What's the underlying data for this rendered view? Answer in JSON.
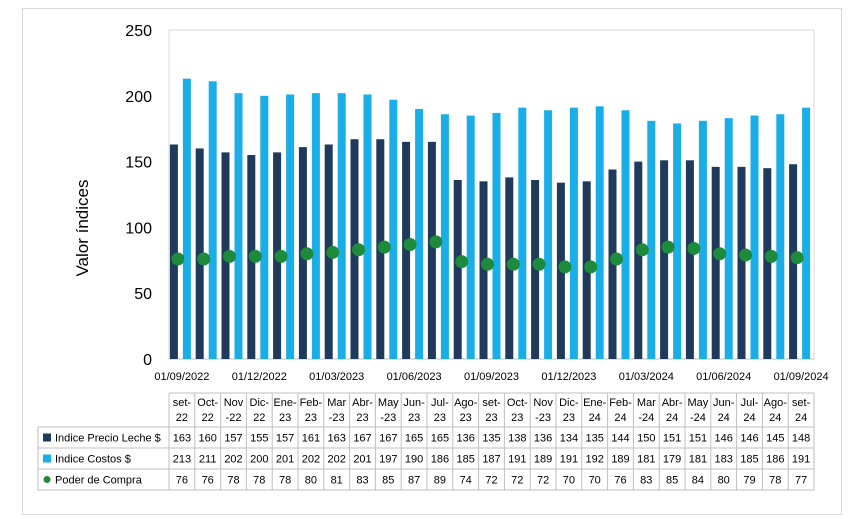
{
  "chart_data": {
    "type": "bar",
    "ylabel": "Valor índices",
    "ylim": [
      0,
      250
    ],
    "yticks": [
      0,
      50,
      100,
      150,
      200,
      250
    ],
    "date_axis_labels": [
      "01/09/2022",
      "01/12/2022",
      "01/03/2023",
      "01/06/2023",
      "01/09/2023",
      "01/12/2023",
      "01/03/2024",
      "01/06/2024",
      "01/09/2024"
    ],
    "categories": [
      [
        "set-",
        "22"
      ],
      [
        "Oct-",
        "22"
      ],
      [
        "Nov",
        "-22"
      ],
      [
        "Dic-",
        "22"
      ],
      [
        "Ene-",
        "23"
      ],
      [
        "Feb-",
        "23"
      ],
      [
        "Mar",
        "-23"
      ],
      [
        "Abr-",
        "23"
      ],
      [
        "May",
        "-23"
      ],
      [
        "Jun-",
        "23"
      ],
      [
        "Jul-",
        "23"
      ],
      [
        "Ago-",
        "23"
      ],
      [
        "set-",
        "23"
      ],
      [
        "Oct-",
        "23"
      ],
      [
        "Nov",
        "-23"
      ],
      [
        "Dic-",
        "23"
      ],
      [
        "Ene-",
        "24"
      ],
      [
        "Feb-",
        "24"
      ],
      [
        "Mar",
        "-24"
      ],
      [
        "Abr-",
        "24"
      ],
      [
        "May",
        "-24"
      ],
      [
        "Jun-",
        "24"
      ],
      [
        "Jul-",
        "24"
      ],
      [
        "Ago-",
        "24"
      ],
      [
        "set-",
        "24"
      ]
    ],
    "series": [
      {
        "name": "Indice Precio Leche $",
        "kind": "bar",
        "color": "#1f3a5a",
        "values": [
          163,
          160,
          157,
          155,
          157,
          161,
          163,
          167,
          167,
          165,
          165,
          136,
          135,
          138,
          136,
          134,
          135,
          144,
          150,
          151,
          151,
          146,
          146,
          145,
          148
        ]
      },
      {
        "name": "Indice Costos $",
        "kind": "bar",
        "color": "#1aaee8",
        "values": [
          213,
          211,
          202,
          200,
          201,
          202,
          202,
          201,
          197,
          190,
          186,
          185,
          187,
          191,
          189,
          191,
          192,
          189,
          181,
          179,
          181,
          183,
          185,
          186,
          191
        ]
      },
      {
        "name": "Poder de Compra",
        "kind": "marker",
        "color": "#1e8a3c",
        "values": [
          76,
          76,
          78,
          78,
          78,
          80,
          81,
          83,
          85,
          87,
          89,
          74,
          72,
          72,
          72,
          70,
          70,
          76,
          83,
          85,
          84,
          80,
          79,
          78,
          77
        ]
      }
    ],
    "grid": false,
    "legend": "data-table"
  }
}
